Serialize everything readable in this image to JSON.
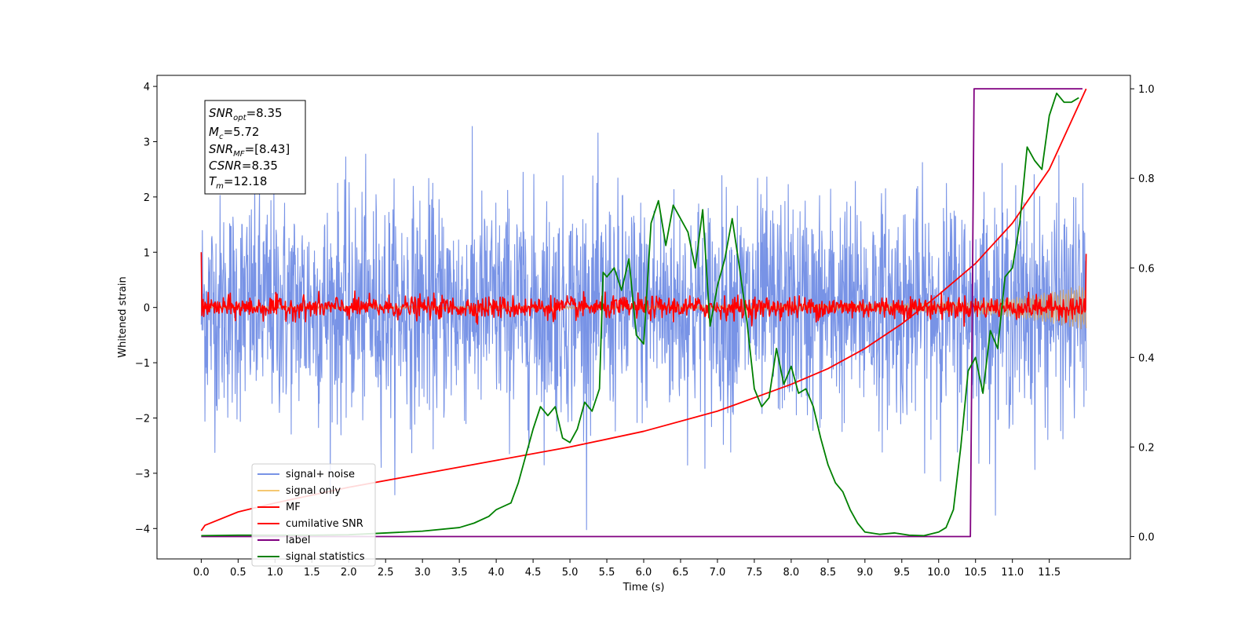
{
  "chart_data": {
    "type": "line",
    "xlabel": "Time (s)",
    "ylabel": "Whitened strain",
    "xlim": [
      -0.6,
      12.6
    ],
    "ylim": [
      -4.55,
      4.2
    ],
    "y2lim": [
      -0.05,
      1.03
    ],
    "x_ticks": [
      "0.0",
      "0.5",
      "1.0",
      "1.5",
      "2.0",
      "2.5",
      "3.0",
      "3.5",
      "4.0",
      "4.5",
      "5.0",
      "5.5",
      "6.0",
      "6.5",
      "7.0",
      "7.5",
      "8.0",
      "8.5",
      "9.0",
      "9.5",
      "10.0",
      "10.5",
      "11.0",
      "11.5"
    ],
    "y_ticks": [
      "4",
      "3",
      "2",
      "1",
      "0",
      "−1",
      "−2",
      "−3",
      "−4"
    ],
    "y2_ticks": [
      "1.0",
      "0.8",
      "0.6",
      "0.4",
      "0.2",
      "0.0"
    ],
    "stats": {
      "snr_opt": {
        "label": "SNR",
        "sub": "opt",
        "value": "=8.35"
      },
      "mc": {
        "label": "M",
        "sub": "c",
        "value": "=5.72"
      },
      "snr_mf": {
        "label": "SNR",
        "sub": "MF",
        "value": "=[8.43]"
      },
      "csnr": {
        "label": "CSNR",
        "value": "=8.35"
      },
      "tm": {
        "label": "T",
        "sub": "m",
        "value": "=12.18"
      }
    },
    "legend": [
      {
        "label": "signal+ noise",
        "color": "#7893e6"
      },
      {
        "label": "signal only",
        "color": "#f5c872"
      },
      {
        "label": "MF",
        "color": "#ff0000"
      },
      {
        "label": "cumilative SNR",
        "color": "#ff0000"
      },
      {
        "label": "label",
        "color": "#800080"
      },
      {
        "label": "signal statistics",
        "color": "#008000"
      }
    ],
    "series": [
      {
        "name": "signal+ noise",
        "axis": "left",
        "color": "#7893e6",
        "kind": "noise",
        "amplitude_std": 1.0,
        "x_range": [
          0,
          12.0
        ]
      },
      {
        "name": "signal only",
        "axis": "left",
        "color": "#c8a27a",
        "kind": "envelope",
        "x": [
          0,
          6.0,
          8.0,
          9.5,
          10.5,
          11.0,
          11.5,
          12.0
        ],
        "amplitude": [
          0.02,
          0.03,
          0.05,
          0.08,
          0.12,
          0.18,
          0.28,
          0.42
        ]
      },
      {
        "name": "MF",
        "axis": "left",
        "color": "#ff0000",
        "kind": "noise",
        "amplitude_std": 0.1,
        "start_value": 1.0,
        "end_value": 0.97,
        "x_range": [
          0,
          12.0
        ]
      },
      {
        "name": "cumilative SNR",
        "axis": "right",
        "color": "#ff0000",
        "x": [
          0,
          0.05,
          0.5,
          1.0,
          2.0,
          3.0,
          4.0,
          5.0,
          6.0,
          7.0,
          7.5,
          8.0,
          8.5,
          9.0,
          9.5,
          10.0,
          10.5,
          11.0,
          11.5,
          12.0
        ],
        "y": [
          0.013,
          0.025,
          0.055,
          0.075,
          0.11,
          0.14,
          0.17,
          0.2,
          0.235,
          0.28,
          0.31,
          0.34,
          0.375,
          0.42,
          0.475,
          0.54,
          0.61,
          0.7,
          0.82,
          1.0
        ]
      },
      {
        "name": "label",
        "axis": "right",
        "color": "#800080",
        "x": [
          0,
          10.43,
          10.48,
          11.95
        ],
        "y": [
          0,
          0,
          1,
          1
        ]
      },
      {
        "name": "signal statistics",
        "axis": "right",
        "color": "#008000",
        "x": [
          0,
          0.5,
          1.0,
          1.5,
          2.0,
          2.5,
          3.0,
          3.5,
          3.7,
          3.9,
          4.0,
          4.2,
          4.3,
          4.4,
          4.5,
          4.6,
          4.7,
          4.8,
          4.9,
          5.0,
          5.1,
          5.2,
          5.3,
          5.4,
          5.45,
          5.5,
          5.6,
          5.7,
          5.8,
          5.9,
          6.0,
          6.1,
          6.2,
          6.3,
          6.4,
          6.5,
          6.6,
          6.7,
          6.8,
          6.9,
          7.0,
          7.1,
          7.2,
          7.3,
          7.4,
          7.5,
          7.6,
          7.7,
          7.8,
          7.9,
          8.0,
          8.1,
          8.2,
          8.3,
          8.4,
          8.5,
          8.6,
          8.7,
          8.8,
          8.9,
          9.0,
          9.2,
          9.4,
          9.6,
          9.8,
          10.0,
          10.1,
          10.2,
          10.3,
          10.4,
          10.5,
          10.6,
          10.7,
          10.8,
          10.9,
          11.0,
          11.1,
          11.2,
          11.3,
          11.4,
          11.5,
          11.6,
          11.7,
          11.8,
          11.9
        ],
        "y": [
          0.002,
          0.003,
          0.003,
          0.003,
          0.004,
          0.008,
          0.012,
          0.02,
          0.03,
          0.045,
          0.06,
          0.075,
          0.12,
          0.18,
          0.24,
          0.29,
          0.27,
          0.29,
          0.22,
          0.21,
          0.24,
          0.3,
          0.28,
          0.33,
          0.59,
          0.58,
          0.6,
          0.55,
          0.62,
          0.45,
          0.43,
          0.7,
          0.75,
          0.65,
          0.74,
          0.71,
          0.68,
          0.6,
          0.73,
          0.47,
          0.56,
          0.62,
          0.71,
          0.6,
          0.48,
          0.33,
          0.29,
          0.31,
          0.42,
          0.34,
          0.38,
          0.32,
          0.33,
          0.29,
          0.22,
          0.16,
          0.12,
          0.1,
          0.06,
          0.03,
          0.01,
          0.005,
          0.008,
          0.003,
          0.002,
          0.01,
          0.02,
          0.06,
          0.2,
          0.37,
          0.4,
          0.32,
          0.46,
          0.42,
          0.58,
          0.6,
          0.7,
          0.87,
          0.84,
          0.82,
          0.94,
          0.99,
          0.97,
          0.97,
          0.98
        ]
      }
    ]
  }
}
